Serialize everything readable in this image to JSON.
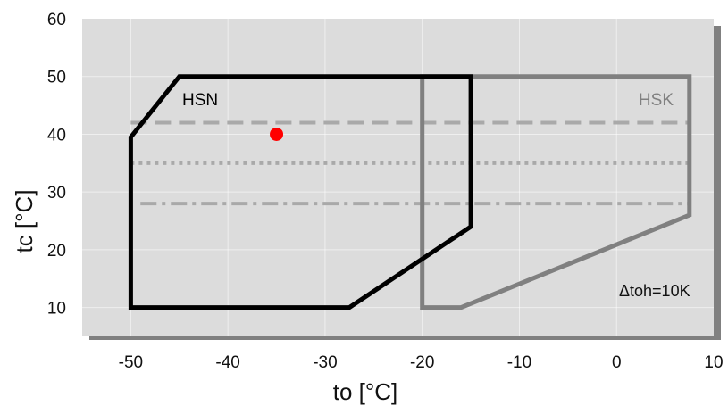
{
  "chart_data": {
    "type": "area",
    "title": "",
    "xlabel": "to [°C]",
    "ylabel": "tc [°C]",
    "xlim": [
      -55,
      10
    ],
    "ylim": [
      5,
      60
    ],
    "x_ticks": [
      -50,
      -40,
      -30,
      -20,
      -10,
      0,
      10
    ],
    "y_ticks": [
      10,
      20,
      30,
      40,
      50,
      60
    ],
    "x_tick_labels": [
      "-50",
      "-40",
      "-30",
      "-20",
      "-10",
      "0",
      "10"
    ],
    "y_tick_labels": [
      "10",
      "20",
      "30",
      "40",
      "50",
      "60"
    ],
    "grid": true,
    "series": [
      {
        "name": "HSN",
        "color": "#000000",
        "points": [
          [
            -50,
            10
          ],
          [
            -27.5,
            10
          ],
          [
            -15,
            24
          ],
          [
            -15,
            50
          ],
          [
            -45,
            50
          ],
          [
            -50,
            39.5
          ]
        ]
      },
      {
        "name": "HSK",
        "color": "#808080",
        "points": [
          [
            -20,
            10
          ],
          [
            -16,
            10
          ],
          [
            7.5,
            26
          ],
          [
            7.5,
            50
          ],
          [
            -20,
            50
          ]
        ]
      }
    ],
    "reference_lines": [
      {
        "style": "dashed",
        "y": 42,
        "x": [
          -50,
          7.5
        ],
        "color": "#a9a9a9"
      },
      {
        "style": "dotted",
        "y": 35,
        "x": [
          -50,
          7.5
        ],
        "color": "#a9a9a9"
      },
      {
        "style": "dashdot",
        "y": 28,
        "x": [
          -49,
          7.5
        ],
        "color": "#a9a9a9"
      }
    ],
    "marker": {
      "x": -35,
      "y": 40,
      "color": "#ff0000"
    },
    "annotation": "Δtoh=10K"
  }
}
